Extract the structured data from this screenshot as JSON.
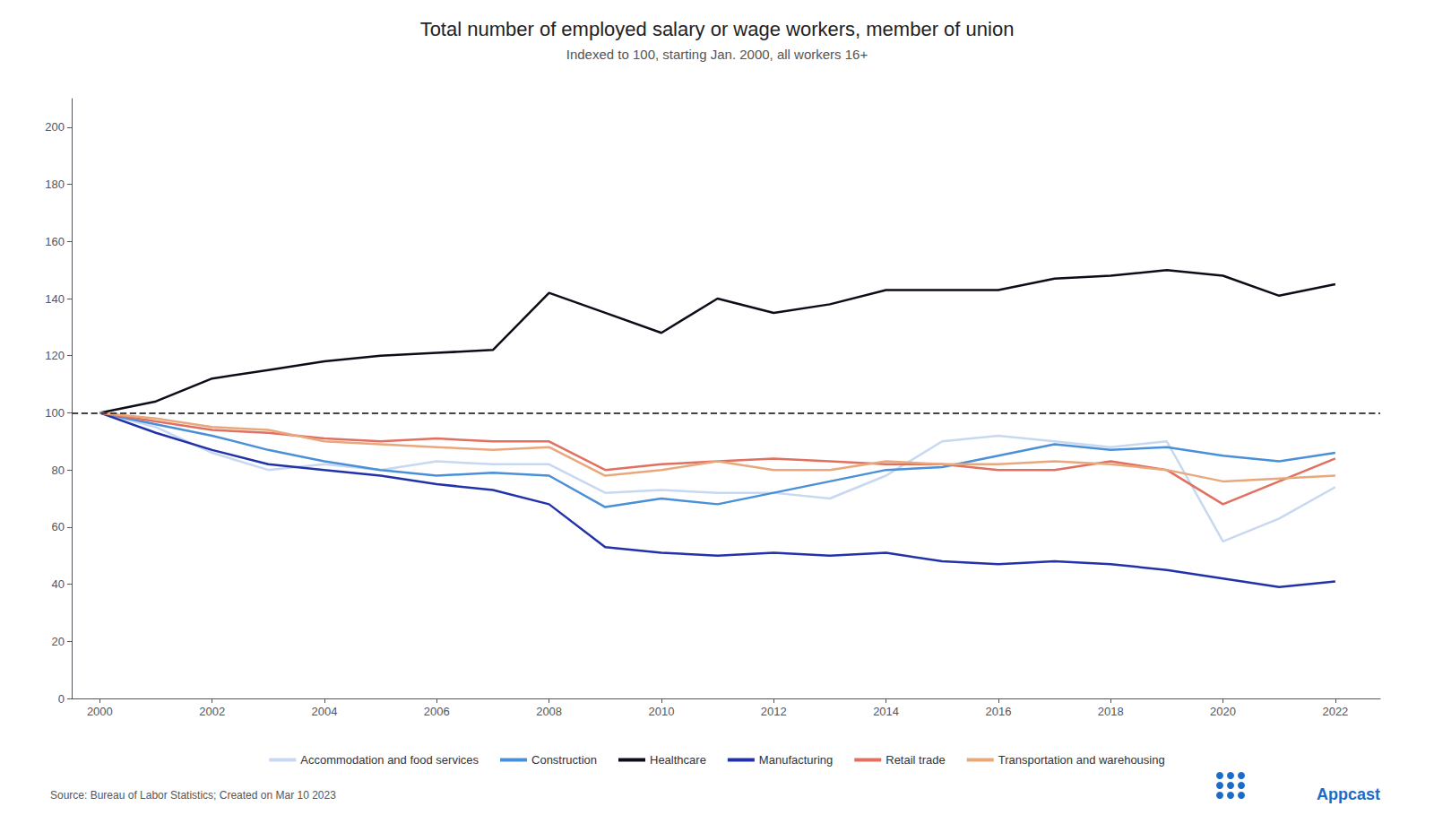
{
  "chart_data": {
    "type": "line",
    "title": "Total number of employed salary or wage workers, member of union",
    "subtitle": "Indexed to 100, starting Jan. 2000, all workers 16+",
    "source": "Source: Bureau of Labor Statistics; Created on Mar 10 2023",
    "annotations": [
      {
        "text": "Appcast",
        "color": "#1a6cc8"
      }
    ],
    "x": [
      2000,
      2001,
      2002,
      2003,
      2004,
      2005,
      2006,
      2007,
      2008,
      2009,
      2010,
      2011,
      2012,
      2013,
      2014,
      2015,
      2016,
      2017,
      2018,
      2019,
      2020,
      2021,
      2022
    ],
    "series": [
      {
        "name": "Accommodation and food services",
        "color": "#c8d8f0",
        "values": [
          100,
          95,
          86,
          80,
          82,
          80,
          83,
          82,
          82,
          72,
          73,
          72,
          72,
          70,
          78,
          90,
          92,
          90,
          88,
          90,
          55,
          63,
          74
        ]
      },
      {
        "name": "Construction",
        "color": "#4a90d9",
        "values": [
          100,
          96,
          92,
          87,
          83,
          80,
          78,
          79,
          78,
          67,
          70,
          68,
          72,
          76,
          80,
          81,
          85,
          89,
          87,
          88,
          85,
          83,
          86
        ]
      },
      {
        "name": "Healthcare",
        "color": "#0d0d1a",
        "values": [
          100,
          104,
          112,
          115,
          118,
          120,
          121,
          122,
          142,
          135,
          128,
          140,
          135,
          138,
          143,
          143,
          143,
          147,
          148,
          150,
          148,
          141,
          145
        ]
      },
      {
        "name": "Manufacturing",
        "color": "#2233aa",
        "values": [
          100,
          93,
          87,
          82,
          80,
          78,
          75,
          73,
          68,
          53,
          51,
          50,
          51,
          50,
          51,
          48,
          47,
          48,
          47,
          45,
          42,
          39,
          41
        ]
      },
      {
        "name": "Retail trade",
        "color": "#e07060",
        "values": [
          100,
          97,
          94,
          93,
          91,
          90,
          91,
          90,
          90,
          80,
          82,
          83,
          84,
          83,
          82,
          82,
          80,
          80,
          83,
          80,
          68,
          76,
          84
        ]
      },
      {
        "name": "Transportation and warehousing",
        "color": "#e8a87c",
        "values": [
          100,
          98,
          95,
          94,
          90,
          89,
          88,
          87,
          88,
          78,
          80,
          83,
          80,
          80,
          83,
          82,
          82,
          83,
          82,
          80,
          76,
          77,
          78
        ]
      }
    ],
    "xlim": [
      1999.5,
      2022.8
    ],
    "xticks": [
      2000,
      2002,
      2004,
      2006,
      2008,
      2010,
      2012,
      2014,
      2016,
      2018,
      2020,
      2022
    ],
    "ylim": [
      0,
      210
    ],
    "yticks": [
      0,
      20,
      40,
      60,
      80,
      100,
      120,
      140,
      160,
      180,
      200
    ],
    "grid": false,
    "legend": "bottom",
    "reference_line": {
      "value": 100,
      "color": "#444444",
      "line_style": "dashed"
    }
  }
}
